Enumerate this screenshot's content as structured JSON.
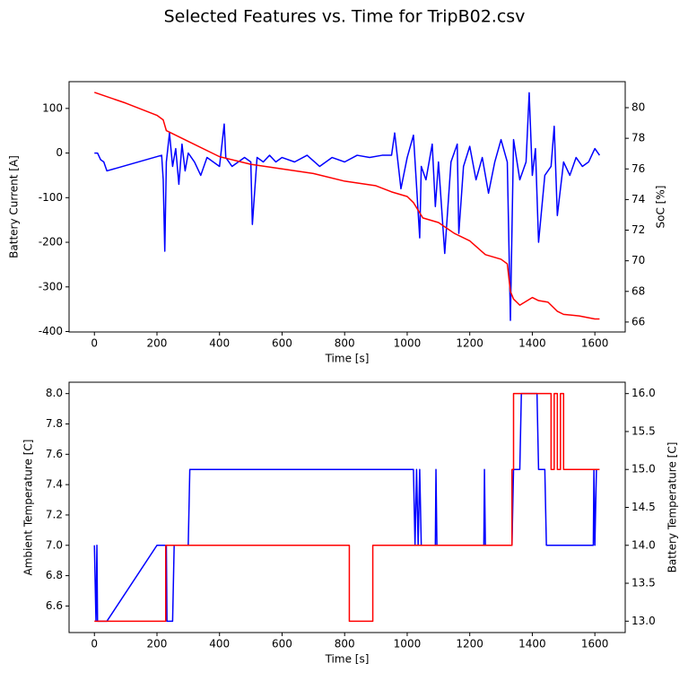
{
  "title": "Selected Features vs. Time for TripB02.csv",
  "chart_data": [
    {
      "type": "line",
      "xlabel": "Time [s]",
      "ylabel": "Battery Current [A]",
      "y2label": "SoC [%]",
      "xlim": [
        -81,
        1697
      ],
      "xticks": [
        0,
        200,
        400,
        600,
        800,
        1000,
        1200,
        1400,
        1600
      ],
      "ylim": [
        -401,
        160
      ],
      "yticks": [
        -400,
        -300,
        -200,
        -100,
        0,
        100
      ],
      "y2lim": [
        65.35,
        81.7
      ],
      "y2ticks": [
        66,
        68,
        70,
        72,
        74,
        76,
        78,
        80
      ],
      "series": [
        {
          "color": "#0000ff",
          "x": [
            0,
            10,
            20,
            30,
            40,
            215,
            220,
            225,
            230,
            240,
            250,
            260,
            270,
            280,
            290,
            300,
            320,
            340,
            360,
            380,
            400,
            415,
            420,
            440,
            460,
            480,
            500,
            505,
            520,
            540,
            560,
            580,
            600,
            640,
            680,
            720,
            760,
            800,
            840,
            880,
            920,
            950,
            960,
            980,
            1000,
            1020,
            1040,
            1045,
            1060,
            1080,
            1090,
            1100,
            1120,
            1140,
            1160,
            1165,
            1180,
            1200,
            1220,
            1240,
            1260,
            1280,
            1300,
            1320,
            1330,
            1340,
            1360,
            1380,
            1390,
            1400,
            1410,
            1420,
            1440,
            1460,
            1470,
            1480,
            1500,
            1520,
            1540,
            1560,
            1580,
            1600,
            1615
          ],
          "values": [
            0,
            0,
            -15,
            -20,
            -40,
            -5,
            -60,
            -220,
            -20,
            45,
            -30,
            10,
            -70,
            20,
            -40,
            0,
            -20,
            -50,
            -10,
            -20,
            -30,
            65,
            -10,
            -30,
            -20,
            -10,
            -20,
            -160,
            -10,
            -20,
            -5,
            -20,
            -10,
            -20,
            -5,
            -30,
            -10,
            -20,
            -5,
            -10,
            -5,
            -5,
            45,
            -80,
            -10,
            40,
            -190,
            -30,
            -60,
            20,
            -120,
            -20,
            -225,
            -20,
            20,
            -180,
            -30,
            15,
            -60,
            -10,
            -90,
            -20,
            30,
            -20,
            -375,
            30,
            -60,
            -20,
            135,
            -50,
            10,
            -200,
            -50,
            -30,
            60,
            -140,
            -20,
            -50,
            -10,
            -30,
            -20,
            10,
            -5
          ]
        },
        {
          "color": "#ff0000",
          "axis": "y2",
          "x": [
            0,
            100,
            200,
            220,
            230,
            300,
            400,
            500,
            600,
            700,
            800,
            900,
            950,
            1000,
            1020,
            1050,
            1100,
            1150,
            1200,
            1250,
            1300,
            1320,
            1330,
            1340,
            1360,
            1400,
            1420,
            1450,
            1480,
            1500,
            1550,
            1600,
            1615
          ],
          "values": [
            81,
            80.3,
            79.5,
            79.2,
            78.5,
            77.8,
            76.8,
            76.3,
            76,
            75.7,
            75.2,
            74.9,
            74.5,
            74.2,
            73.8,
            72.8,
            72.5,
            71.8,
            71.3,
            70.4,
            70.1,
            69.8,
            68,
            67.5,
            67.1,
            67.6,
            67.4,
            67.3,
            66.7,
            66.5,
            66.4,
            66.2,
            66.2
          ]
        }
      ]
    },
    {
      "type": "line",
      "xlabel": "Time [s]",
      "ylabel": "Ambient Temperature [C]",
      "y2label": "Battery Temperature [C]",
      "xlim": [
        -81,
        1697
      ],
      "xticks": [
        0,
        200,
        400,
        600,
        800,
        1000,
        1200,
        1400,
        1600
      ],
      "ylim": [
        6.425,
        8.075
      ],
      "yticks": [
        6.6,
        6.8,
        {
          "value": 7,
          "label": "7.0"
        },
        7.2,
        7.4,
        7.6,
        7.8,
        {
          "value": 8,
          "label": "8.0"
        }
      ],
      "y2lim": [
        12.85,
        16.15
      ],
      "y2ticks": [
        {
          "value": 13,
          "label": "13.0"
        },
        13.5,
        {
          "value": 14,
          "label": "14.0"
        },
        14.5,
        {
          "value": 15,
          "label": "15.0"
        },
        15.5,
        {
          "value": 16,
          "label": "16.0"
        }
      ],
      "series": [
        {
          "color": "#0000ff",
          "x": [
            0,
            5,
            8,
            10,
            40,
            200,
            230,
            232,
            250,
            255,
            300,
            305,
            1020,
            1025,
            1030,
            1035,
            1040,
            1045,
            1090,
            1092,
            1095,
            1245,
            1247,
            1250,
            1335,
            1340,
            1360,
            1365,
            1415,
            1420,
            1440,
            1445,
            1595,
            1597,
            1600,
            1605,
            1610
          ],
          "values": [
            7,
            6.5,
            7,
            6.5,
            6.5,
            7,
            7,
            6.5,
            6.5,
            7,
            7,
            7.5,
            7.5,
            7,
            7.5,
            7,
            7.5,
            7,
            7,
            7.5,
            7,
            7,
            7.5,
            7,
            7,
            7.5,
            7.5,
            8,
            8,
            7.5,
            7.5,
            7,
            7,
            7.5,
            7,
            7.5,
            7.5
          ]
        },
        {
          "color": "#ff0000",
          "axis": "y2",
          "x": [
            0,
            228,
            228,
            815,
            815,
            890,
            890,
            1335,
            1335,
            1340,
            1340,
            1460,
            1460,
            1470,
            1470,
            1480,
            1480,
            1490,
            1490,
            1500,
            1500,
            1615
          ],
          "values": [
            13,
            13,
            14,
            14,
            13,
            13,
            14,
            14,
            15,
            15,
            16,
            16,
            15,
            15,
            16,
            16,
            15,
            15,
            16,
            16,
            15,
            15
          ]
        }
      ]
    }
  ]
}
